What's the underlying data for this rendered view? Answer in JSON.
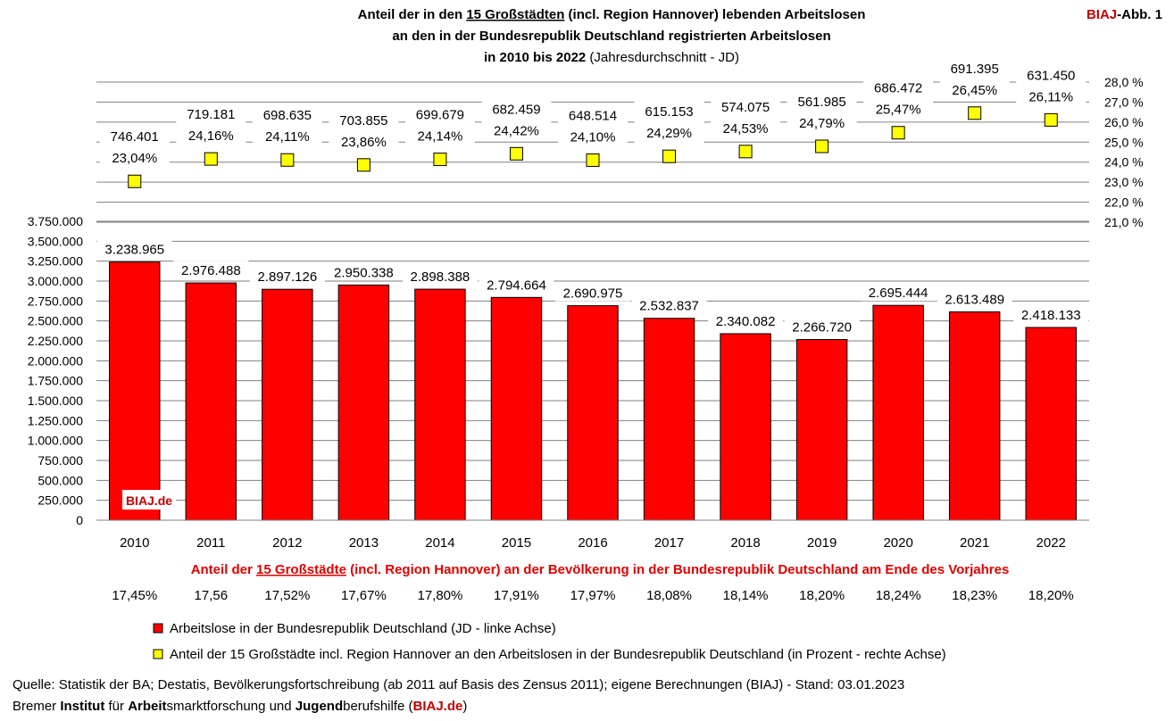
{
  "header": {
    "title_line1_pre": "Anteil der in den ",
    "title_line1_u": "15 Großstädten",
    "title_line1_post": " (incl. Region Hannover) lebenden Arbeitslosen",
    "title_line2": "an den in der Bundesrepublik Deutschland  registrierten Arbeitslosen",
    "title_line3_bold": "in 2010 bis 2022",
    "title_line3_normal": " (Jahresdurchschnitt - JD)",
    "badge_red": "BIAJ",
    "badge_black": "-Abb. 1"
  },
  "colors": {
    "bar": "#ff0000",
    "marker": "#ffff00",
    "accent": "#c00000",
    "grid": "#808080"
  },
  "chart_data": {
    "type": "bar",
    "categories": [
      "2010",
      "2011",
      "2012",
      "2013",
      "2014",
      "2015",
      "2016",
      "2017",
      "2018",
      "2019",
      "2020",
      "2021",
      "2022"
    ],
    "series": [
      {
        "name": "Arbeitslose in der Bundesrepublik Deutschland (JD - linke Achse)",
        "axis": "left",
        "values": [
          3238965,
          2976488,
          2897126,
          2950338,
          2898388,
          2794664,
          2690975,
          2532837,
          2340082,
          2266720,
          2695444,
          2613489,
          2418133
        ],
        "labels": [
          "3.238.965",
          "2.976.488",
          "2.897.126",
          "2.950.338",
          "2.898.388",
          "2.794.664",
          "2.690.975",
          "2.532.837",
          "2.340.082",
          "2.266.720",
          "2.695.444",
          "2.613.489",
          "2.418.133"
        ]
      },
      {
        "name": "Anteil der 15 Großstädte incl. Region Hannover an den Arbeitslosen in der Bundesrepublik Deutschland (in Prozent - rechte Achse)",
        "axis": "right",
        "values": [
          23.04,
          24.16,
          24.11,
          23.86,
          24.14,
          24.42,
          24.1,
          24.29,
          24.53,
          24.79,
          25.47,
          26.45,
          26.11
        ],
        "labels": [
          "23,04%",
          "24,16%",
          "24,11%",
          "23,86%",
          "24,14%",
          "24,42%",
          "24,10%",
          "24,29%",
          "24,53%",
          "24,79%",
          "25,47%",
          "26,45%",
          "26,11%"
        ],
        "counts": [
          "746.401",
          "719.181",
          "698.635",
          "703.855",
          "699.679",
          "682.459",
          "648.514",
          "615.153",
          "574.075",
          "561.985",
          "686.472",
          "691.395",
          "631.450"
        ]
      }
    ],
    "left_axis": {
      "min": 0,
      "max": 3750000,
      "ticks": [
        "0",
        "250.000",
        "500.000",
        "750.000",
        "1.000.000",
        "1.250.000",
        "1.500.000",
        "1.750.000",
        "2.000.000",
        "2.250.000",
        "2.500.000",
        "2.750.000",
        "3.000.000",
        "3.250.000",
        "3.500.000",
        "3.750.000"
      ]
    },
    "right_axis": {
      "min": 21,
      "max": 28,
      "ticks": [
        "21,0 %",
        "22,0 %",
        "23,0 %",
        "24,0 %",
        "25,0 %",
        "26,0 %",
        "27,0 %",
        "28,0 %"
      ]
    },
    "watermark": "BIAJ.de"
  },
  "population_share": {
    "title_pre": "Anteil der ",
    "title_u": "15 Großstädte",
    "title_post": " (incl. Region Hannover) an der Bevölkerung in der Bundesrepublik Deutschland am Ende des Vorjahres",
    "values": [
      "17,45%",
      "17,56",
      "17,52%",
      "17,67%",
      "17,80%",
      "17,91%",
      "17,97%",
      "18,08%",
      "18,14%",
      "18,20%",
      "18,24%",
      "18,23%",
      "18,20%"
    ]
  },
  "legend": {
    "bar": "Arbeitslose in der Bundesrepublik Deutschland (JD - linke Achse)",
    "marker": "Anteil der 15 Großstädte incl. Region Hannover an den Arbeitslosen in der Bundesrepublik Deutschland (in Prozent - rechte Achse)"
  },
  "footer": {
    "source": "Quelle: Statistik der BA; Destatis, Bevölkerungsfortschreibung (ab 2011 auf Basis des Zensus 2011); eigene Berechnungen (BIAJ) - Stand: 03.01.2023",
    "inst": [
      "Bremer ",
      "Institut",
      " für ",
      "Arbeit",
      "smarktforschung und ",
      "Jugend",
      "berufshilfe ("
    ],
    "inst_link": "BIAJ.de",
    "inst_end": ")"
  }
}
